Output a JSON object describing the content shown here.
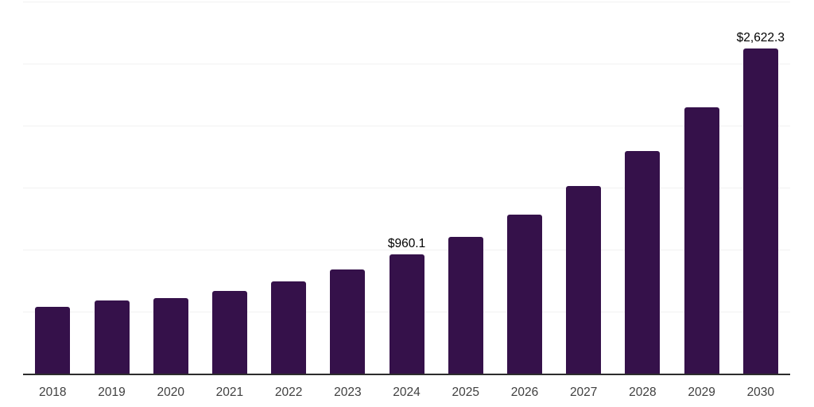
{
  "chart_data": {
    "type": "bar",
    "title": "",
    "xlabel": "",
    "ylabel": "",
    "categories": [
      "2018",
      "2019",
      "2020",
      "2021",
      "2022",
      "2023",
      "2024",
      "2025",
      "2026",
      "2027",
      "2028",
      "2029",
      "2030"
    ],
    "values": [
      536,
      588,
      607,
      664,
      745,
      841,
      960.1,
      1103,
      1281,
      1511,
      1792,
      2150,
      2622.3
    ],
    "data_labels": [
      "",
      "",
      "",
      "",
      "",
      "",
      "$960.1",
      "",
      "",
      "",
      "",
      "",
      "$2,622.3"
    ],
    "ylim": [
      0,
      3000
    ],
    "grid_step": 500,
    "grid": "horizontal-only",
    "legend": "none",
    "colors": {
      "bar": "#35114A",
      "axis_line": "#2D2D2D",
      "gridline": "#F2F2F2",
      "tick_label": "#404040",
      "data_label": "#000000",
      "background": "#FFFFFF"
    }
  }
}
